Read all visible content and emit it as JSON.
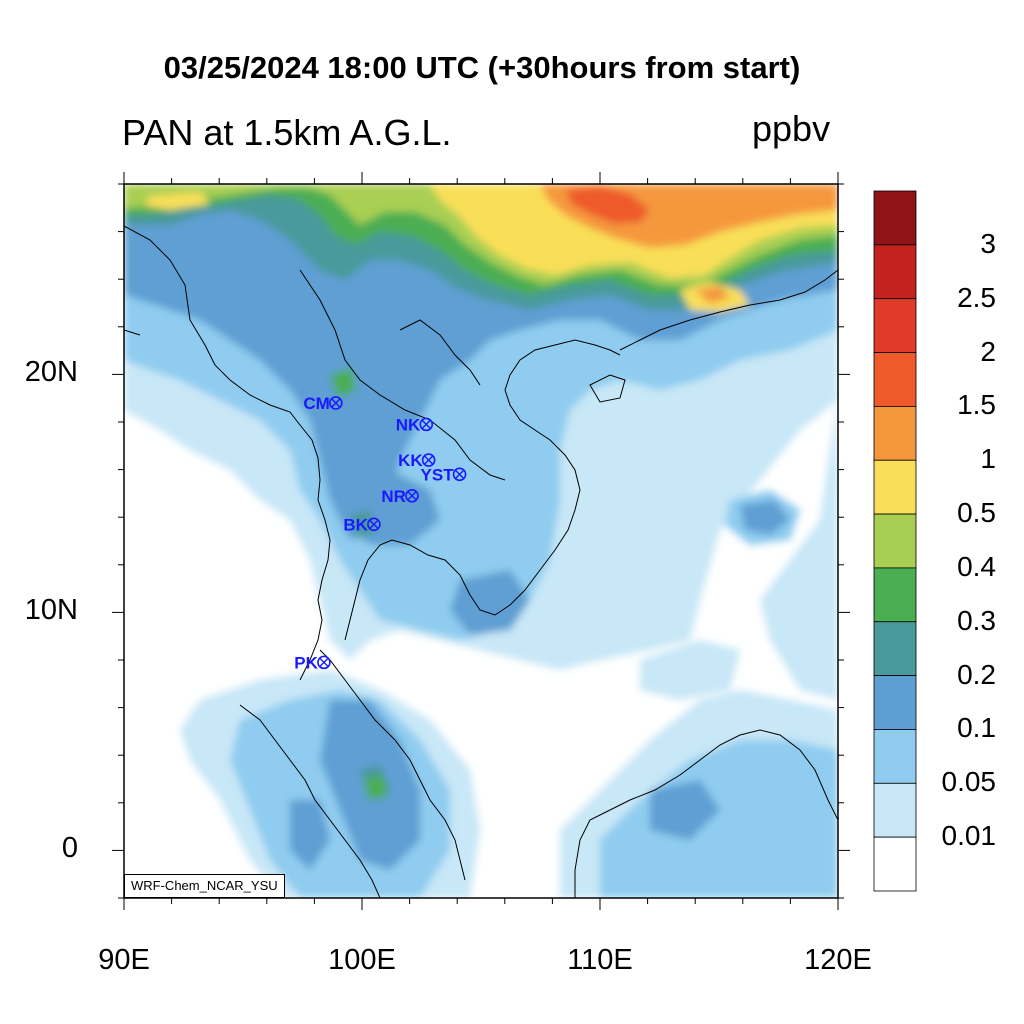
{
  "title": "03/25/2024 18:00 UTC (+30hours from start)",
  "subtitle": "PAN at 1.5km A.G.L.",
  "units": "ppbv",
  "credit": "WRF-Chem_NCAR_YSU",
  "axes": {
    "y_ticks": [
      {
        "label": "20N",
        "lat": 20
      },
      {
        "label": "10N",
        "lat": 10
      },
      {
        "label": "0",
        "lat": 0
      }
    ],
    "x_ticks": [
      {
        "label": "90E",
        "lon": 90
      },
      {
        "label": "100E",
        "lon": 100
      },
      {
        "label": "110E",
        "lon": 110
      },
      {
        "label": "120E",
        "lon": 120
      }
    ],
    "lon_range": [
      90,
      120
    ],
    "lat_range": [
      -2,
      28
    ]
  },
  "colorbar": {
    "labels": [
      "3",
      "2.5",
      "2",
      "1.5",
      "1",
      "0.5",
      "0.4",
      "0.3",
      "0.2",
      "0.1",
      "0.05",
      "0.01"
    ],
    "colors": [
      "#8e1417",
      "#c4231d",
      "#e03a2a",
      "#ee5a2a",
      "#f5983d",
      "#f9df59",
      "#a9cf52",
      "#4bae52",
      "#4a9a9b",
      "#5e9fd3",
      "#8fccef",
      "#c8e7f7",
      "#ffffff"
    ]
  },
  "stations": [
    {
      "name": "CM",
      "lon": 98.9,
      "lat": 18.8
    },
    {
      "name": "NK",
      "lon": 102.7,
      "lat": 17.9
    },
    {
      "name": "KK",
      "lon": 102.8,
      "lat": 16.4
    },
    {
      "name": "YST",
      "lon": 104.1,
      "lat": 15.8
    },
    {
      "name": "NR",
      "lon": 102.1,
      "lat": 14.9
    },
    {
      "name": "BK",
      "lon": 100.5,
      "lat": 13.7
    },
    {
      "name": "PK",
      "lon": 98.4,
      "lat": 7.9
    }
  ]
}
